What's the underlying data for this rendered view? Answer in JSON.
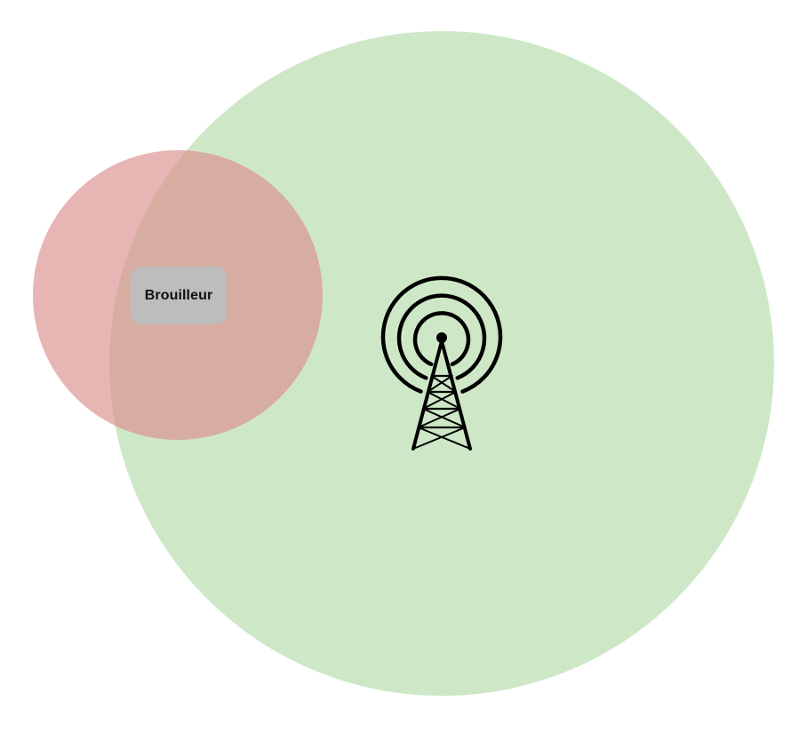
{
  "colors": {
    "coverage_zone": "#c5e4bd",
    "jammer_zone": "#db8e8e",
    "label_bg": "#bdbdbd",
    "tower": "#000000"
  },
  "icons": {
    "tower": "radio-tower-icon"
  },
  "jammer": {
    "label": "Brouilleur"
  }
}
